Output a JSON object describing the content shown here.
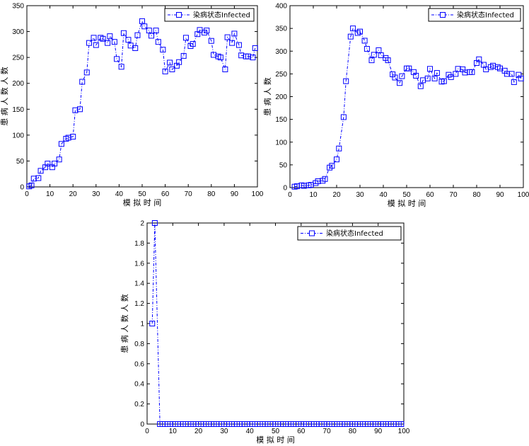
{
  "chart_data": [
    {
      "type": "line",
      "xlabel": "模 拟 时 间",
      "ylabel": "患 病 人 数 人 数",
      "xlim": [
        0,
        100
      ],
      "ylim": [
        0,
        350
      ],
      "xticks": [
        "0",
        "10",
        "20",
        "30",
        "40",
        "50",
        "60",
        "70",
        "80",
        "90",
        "100"
      ],
      "yticks": [
        "0",
        "50",
        "100",
        "150",
        "200",
        "250",
        "300",
        "350"
      ],
      "legend": "top-right",
      "series": [
        {
          "name": "染病状态Infected",
          "color": "#0000ff",
          "marker": "square",
          "linestyle": "dash-dot",
          "x": [
            1,
            2,
            3,
            5,
            6,
            8,
            9,
            11,
            12,
            14,
            15,
            17,
            18,
            20,
            21,
            23,
            24,
            26,
            27,
            29,
            30,
            32,
            33,
            35,
            36,
            38,
            39,
            41,
            42,
            44,
            45,
            47,
            48,
            50,
            51,
            53,
            54,
            56,
            57,
            59,
            60,
            62,
            63,
            65,
            66,
            68,
            69,
            71,
            72,
            74,
            75,
            77,
            78,
            80,
            81,
            83,
            84,
            86,
            87,
            89,
            90,
            92,
            93,
            95,
            96,
            98,
            99
          ],
          "y": [
            1,
            3,
            16,
            17,
            31,
            38,
            45,
            38,
            45,
            53,
            83,
            93,
            95,
            97,
            148,
            150,
            203,
            221,
            278,
            288,
            274,
            288,
            286,
            278,
            291,
            280,
            247,
            232,
            297,
            284,
            273,
            268,
            293,
            320,
            310,
            302,
            292,
            302,
            280,
            265,
            223,
            240,
            227,
            234,
            241,
            253,
            288,
            272,
            276,
            295,
            303,
            298,
            302,
            282,
            255,
            252,
            250,
            227,
            289,
            278,
            296,
            274,
            254,
            252,
            252,
            250,
            268
          ]
        }
      ]
    },
    {
      "type": "line",
      "xlabel": "模 拟 时 间",
      "ylabel": "患 病 人 数",
      "xlim": [
        0,
        100
      ],
      "ylim": [
        0,
        400
      ],
      "xticks": [
        "0",
        "10",
        "20",
        "30",
        "40",
        "50",
        "60",
        "70",
        "80",
        "90",
        "100"
      ],
      "yticks": [
        "0",
        "50",
        "100",
        "150",
        "200",
        "250",
        "300",
        "350",
        "400"
      ],
      "legend": "top-right",
      "series": [
        {
          "name": "染病状态Infected",
          "color": "#0000ff",
          "marker": "square",
          "linestyle": "dash-dot",
          "x": [
            2,
            3,
            5,
            6,
            8,
            9,
            11,
            12,
            14,
            15,
            17,
            18,
            20,
            21,
            23,
            24,
            26,
            27,
            29,
            30,
            32,
            33,
            35,
            36,
            38,
            39,
            41,
            42,
            44,
            45,
            47,
            48,
            50,
            51,
            53,
            54,
            56,
            57,
            59,
            60,
            62,
            63,
            65,
            66,
            68,
            69,
            71,
            72,
            74,
            75,
            77,
            78,
            80,
            81,
            83,
            84,
            86,
            87,
            89,
            90,
            92,
            93,
            95,
            96,
            98,
            99
          ],
          "y": [
            2,
            3,
            5,
            4,
            5,
            6,
            10,
            14,
            15,
            19,
            44,
            48,
            62,
            86,
            155,
            234,
            332,
            350,
            340,
            343,
            323,
            305,
            280,
            292,
            302,
            291,
            285,
            280,
            249,
            242,
            230,
            245,
            262,
            262,
            254,
            246,
            223,
            236,
            240,
            261,
            240,
            252,
            233,
            234,
            248,
            243,
            250,
            261,
            260,
            253,
            254,
            254,
            274,
            282,
            270,
            260,
            265,
            268,
            265,
            262,
            257,
            250,
            250,
            232,
            248,
            240
          ]
        }
      ]
    },
    {
      "type": "line",
      "xlabel": "模 拟 时 间",
      "ylabel": "患 病 人 数 人 数",
      "xlim": [
        0,
        100
      ],
      "ylim": [
        0,
        2
      ],
      "xticks": [
        "0",
        "10",
        "20",
        "30",
        "40",
        "50",
        "60",
        "70",
        "80",
        "90",
        "100"
      ],
      "yticks": [
        "0",
        "0.2",
        "0.4",
        "0.6",
        "0.8",
        "1",
        "1.2",
        "1.4",
        "1.6",
        "1.8",
        "2"
      ],
      "legend": "top-right",
      "series": [
        {
          "name": "染病状态Infected",
          "color": "#0000ff",
          "marker": "square",
          "linestyle": "dash-dot",
          "x": [
            2,
            3,
            5,
            6,
            8,
            9,
            11,
            12,
            14,
            15,
            17,
            18,
            20,
            21,
            23,
            24,
            26,
            27,
            29,
            30,
            32,
            33,
            35,
            36,
            38,
            39,
            41,
            42,
            44,
            45,
            47,
            48,
            50,
            51,
            53,
            54,
            56,
            57,
            59,
            60,
            62,
            63,
            65,
            66,
            68,
            69,
            71,
            72,
            74,
            75,
            77,
            78,
            80,
            81,
            83,
            84,
            86,
            87,
            89,
            90,
            92,
            93,
            95,
            96,
            98,
            99
          ],
          "y": [
            1,
            2,
            0,
            0,
            0,
            0,
            0,
            0,
            0,
            0,
            0,
            0,
            0,
            0,
            0,
            0,
            0,
            0,
            0,
            0,
            0,
            0,
            0,
            0,
            0,
            0,
            0,
            0,
            0,
            0,
            0,
            0,
            0,
            0,
            0,
            0,
            0,
            0,
            0,
            0,
            0,
            0,
            0,
            0,
            0,
            0,
            0,
            0,
            0,
            0,
            0,
            0,
            0,
            0,
            0,
            0,
            0,
            0,
            0,
            0,
            0,
            0,
            0,
            0,
            0,
            0
          ]
        }
      ]
    }
  ]
}
